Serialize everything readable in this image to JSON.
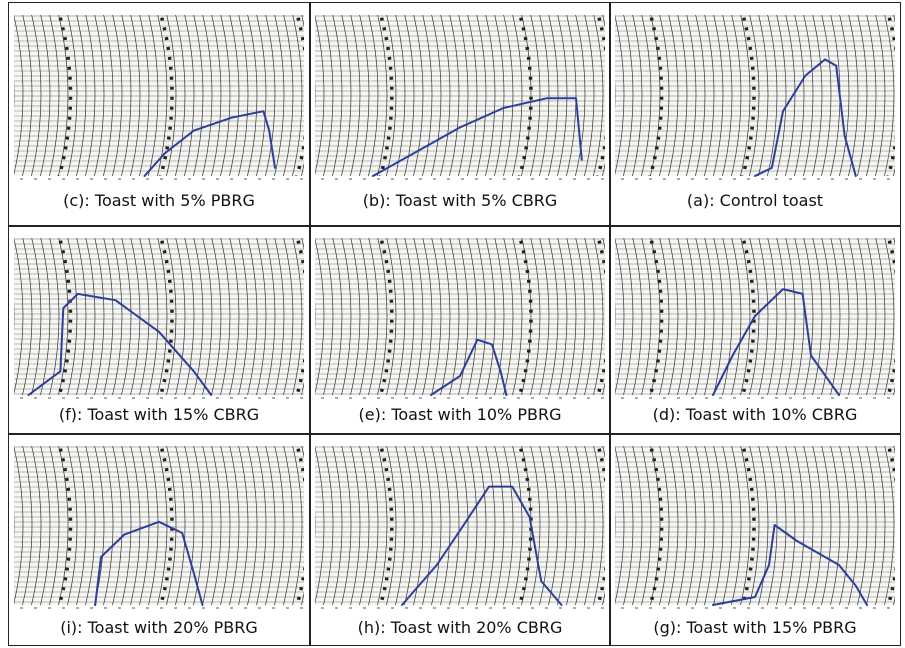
{
  "panels": [
    {
      "caption": "(c): Toast with 5% PBRG"
    },
    {
      "caption": "(b): Toast with 5% CBRG"
    },
    {
      "caption": "(a): Control toast"
    },
    {
      "caption": "(f): Toast with 15% CBRG"
    },
    {
      "caption": "(e): Toast with 10% PBRG"
    },
    {
      "caption": "(d): Toast with 10% CBRG"
    },
    {
      "caption": "(i): Toast with 20% PBRG"
    },
    {
      "caption": "(h): Toast with 20% CBRG"
    },
    {
      "caption": "(g): Toast with 15% PBRG"
    }
  ]
}
